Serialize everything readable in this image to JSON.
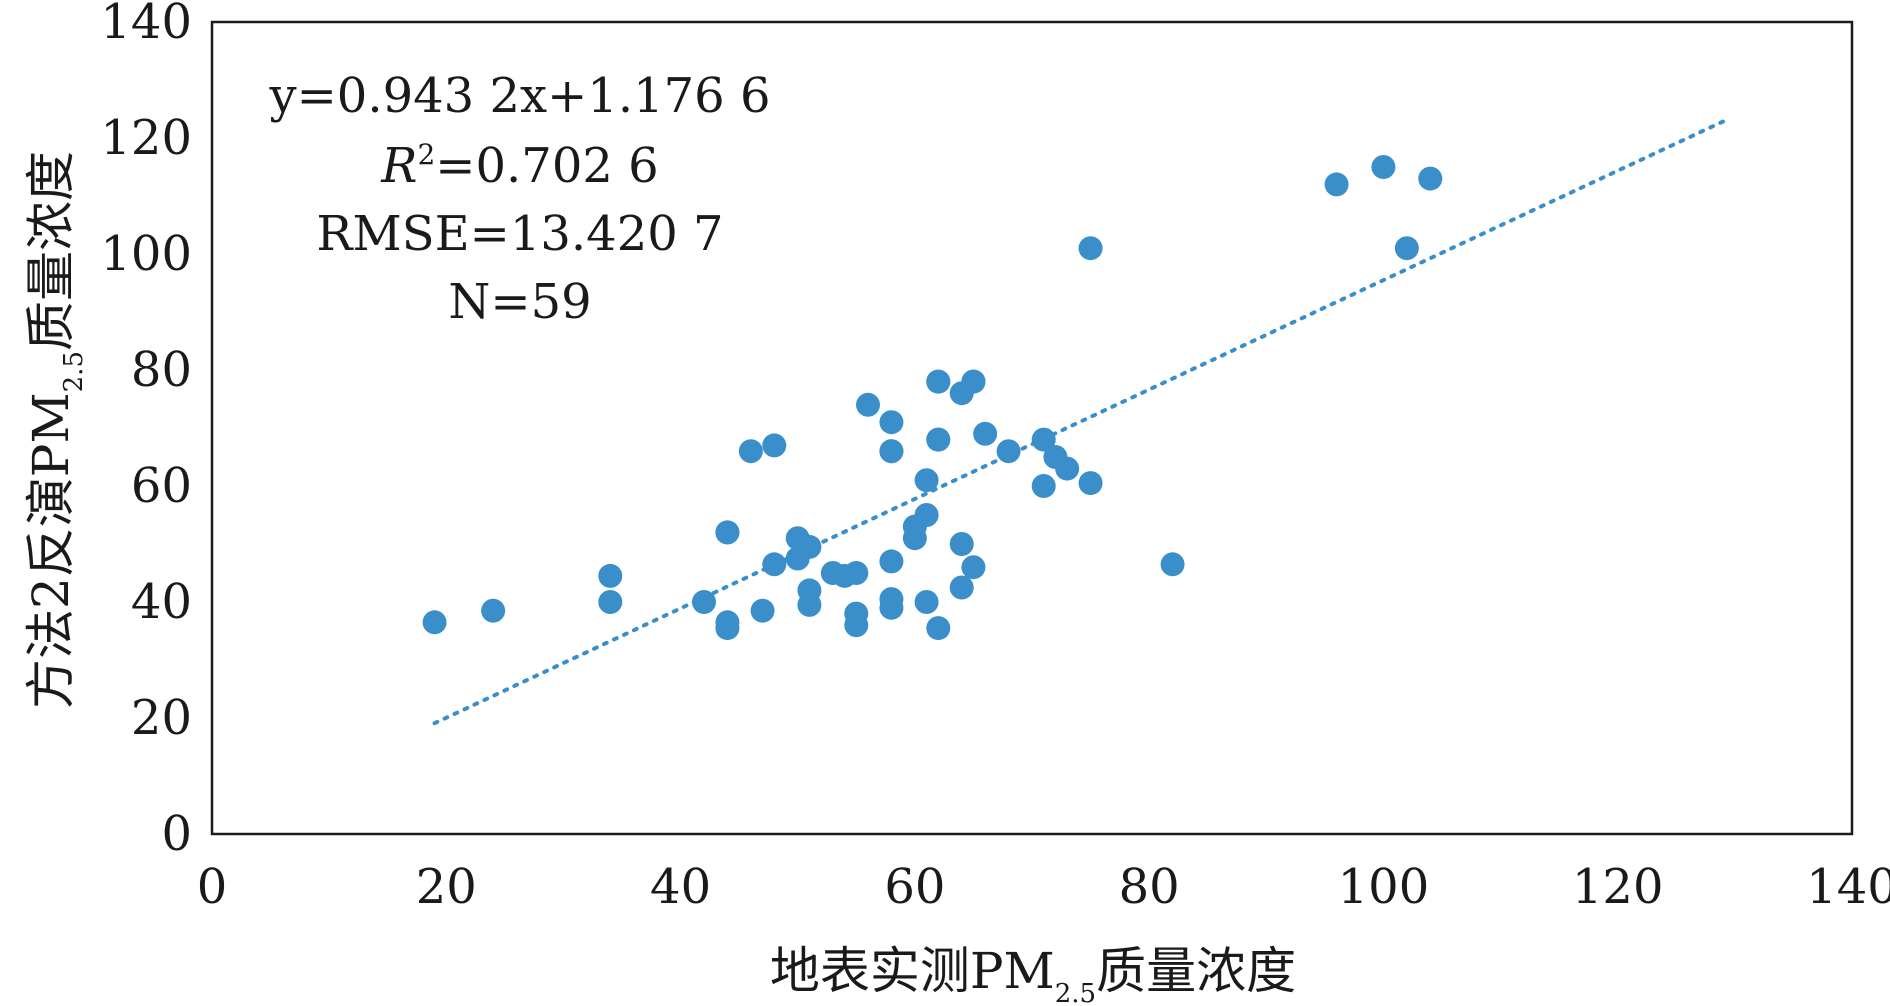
{
  "chart_data": {
    "type": "scatter",
    "title": "",
    "xlabel_main": "地表实测PM",
    "xlabel_sub": "2.5",
    "xlabel_tail": "质量浓度",
    "ylabel_main": "方法2反演PM",
    "ylabel_sub": "2.5",
    "ylabel_tail": "质量浓度",
    "xlim": [
      0,
      140
    ],
    "ylim": [
      0,
      140
    ],
    "xticks": [
      0,
      20,
      40,
      60,
      80,
      100,
      120,
      140
    ],
    "yticks": [
      0,
      20,
      40,
      60,
      80,
      100,
      120,
      140
    ],
    "grid": false,
    "point_color": "#3a8fcb",
    "trend_color": "#3a8fcb",
    "annotation": {
      "equation": "y=0.943 2x+1.176 6",
      "r2_label": "R",
      "r2_sup": "2",
      "r2_value": "=0.702 6",
      "rmse": "RMSE=13.420 7",
      "n": "N=59"
    },
    "trendline": {
      "slope": 0.9432,
      "intercept": 1.1766,
      "x_range": [
        19,
        129
      ]
    },
    "series": [
      {
        "x": [
          19,
          24,
          34,
          34,
          42,
          44,
          44,
          44,
          47,
          48,
          50,
          50,
          51,
          51,
          51,
          53,
          54,
          55,
          55,
          55,
          58,
          58,
          58,
          58,
          60,
          60,
          61,
          61,
          61,
          62,
          62,
          62,
          64,
          64,
          65,
          65,
          44,
          46,
          48,
          56,
          58,
          58,
          62,
          62,
          64,
          65,
          66,
          68,
          71,
          71,
          72,
          73,
          75,
          75,
          82,
          96,
          100,
          102,
          104
        ],
        "y": [
          36.5,
          38.5,
          44.5,
          40,
          40,
          52,
          35.5,
          36.5,
          38.5,
          46.5,
          51,
          47.5,
          49.5,
          42,
          39.5,
          45,
          44.5,
          45,
          38,
          36,
          47,
          40.5,
          39,
          66,
          53,
          51,
          55,
          40,
          61,
          78,
          68,
          35.5,
          76,
          50,
          78,
          46,
          52,
          66,
          67,
          74,
          71,
          66,
          78,
          68,
          42.5,
          78,
          69,
          66,
          60,
          68,
          65,
          63,
          101,
          60.5,
          46.5,
          112,
          115,
          101,
          113
        ]
      }
    ]
  }
}
